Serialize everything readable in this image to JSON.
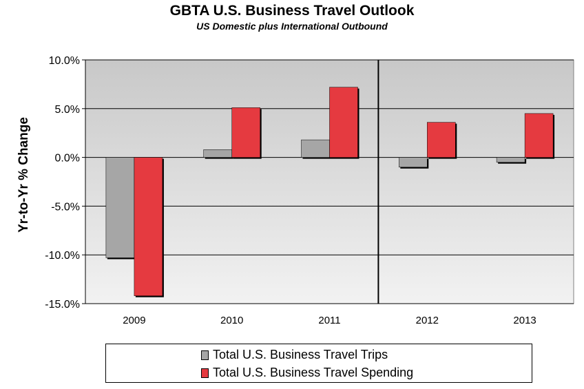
{
  "colors": {
    "trips": "#a6a6a6",
    "spending": "#e53a40",
    "plot_bg_top": "#c8c8c8",
    "plot_bg_bottom": "#f2f2f2"
  },
  "chart_data": {
    "type": "bar",
    "title": "GBTA U.S. Business Travel Outlook",
    "subtitle": "US Domestic plus International Outbound",
    "ylabel": "Yr-to-Yr % Change",
    "xlabel": "",
    "categories": [
      "2009",
      "2010",
      "2011",
      "2012",
      "2013"
    ],
    "ylim": [
      -15,
      10
    ],
    "yticks": [
      10,
      5,
      0,
      -5,
      -10,
      -15
    ],
    "ytick_labels": [
      "10.0%",
      "5.0%",
      "0.0%",
      "-5.0%",
      "-10.0%",
      "-15.0%"
    ],
    "grid": true,
    "forecast_divider_between": [
      "2011",
      "2012"
    ],
    "legend_position": "bottom",
    "series": [
      {
        "name": "Total U.S. Business Travel Trips",
        "values": [
          -10.3,
          0.8,
          1.8,
          -1.0,
          -0.5
        ]
      },
      {
        "name": "Total U.S. Business Travel Spending",
        "values": [
          -14.2,
          5.1,
          7.2,
          3.6,
          4.5
        ]
      }
    ]
  }
}
